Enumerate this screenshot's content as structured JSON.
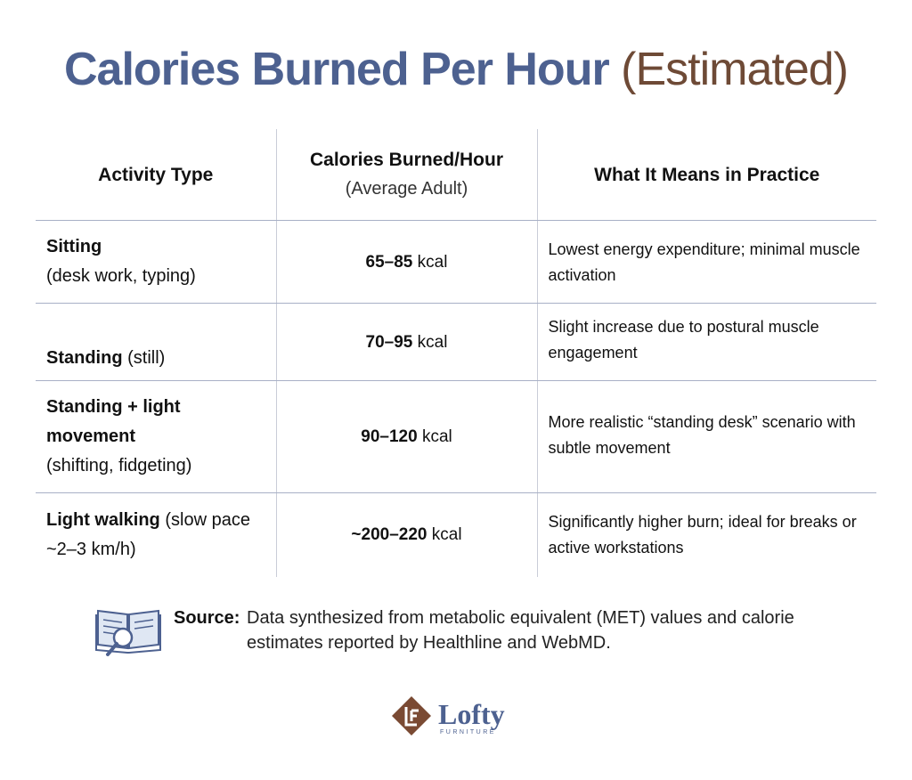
{
  "title": {
    "main": "Calories Burned Per Hour",
    "sub": "(Estimated)"
  },
  "table": {
    "header": [
      {
        "title": "Activity Type"
      },
      {
        "title": "Calories Burned/Hour",
        "subtitle": "(Average Adult)"
      },
      {
        "title": "What It Means in Practice"
      }
    ],
    "rows": [
      {
        "activity": {
          "name": "Sitting",
          "detail": "(desk work, typing)"
        },
        "calories": {
          "range": "65–85",
          "unit": "kcal"
        },
        "meaning": "Lowest energy expenditure; minimal muscle activation"
      },
      {
        "activity": {
          "name": "Standing",
          "detail": "(still)"
        },
        "calories": {
          "range": "70–95",
          "unit": "kcal"
        },
        "meaning": "Slight increase due to postural muscle engagement"
      },
      {
        "activity": {
          "name": "Standing + light movement",
          "detail": "(shifting, fidgeting)"
        },
        "calories": {
          "range": "90–120",
          "unit": "kcal"
        },
        "meaning": "More realistic “standing desk” scenario with subtle movement"
      },
      {
        "activity": {
          "name": "Light walking",
          "detail": "(slow pace ~2–3 km/h)"
        },
        "calories": {
          "range": "~200–220",
          "unit": "kcal"
        },
        "meaning": "Significantly higher burn; ideal for breaks or active workstations"
      }
    ]
  },
  "source": {
    "label": "Source:",
    "text": "Data synthesized from metabolic equivalent (MET) values and calorie estimates reported by Healthline and WebMD."
  },
  "logo": {
    "name": "Lofty",
    "tagline": "FURNITURE"
  }
}
